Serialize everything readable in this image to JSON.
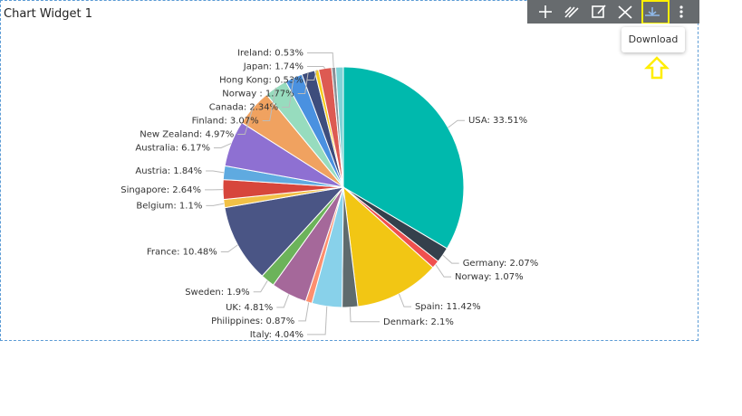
{
  "widget": {
    "title": "Chart Widget 1",
    "tooltip": "Download"
  },
  "chart_data": {
    "type": "pie",
    "values": [
      33.51,
      2.07,
      1.07,
      11.42,
      2.1,
      4.04,
      0.87,
      4.81,
      1.9,
      10.48,
      1.1,
      2.64,
      1.84,
      6.17,
      4.97,
      3.07,
      2.34,
      1.77,
      0.53,
      1.74,
      0.53,
      1.03
    ],
    "value_labels": [
      "USA: 33.51%",
      "Germany: 2.07%",
      "Norway: 1.07%",
      "Spain: 11.42%",
      "Denmark: 2.1%",
      "Italy: 4.04%",
      "Philippines: 0.87%",
      "UK: 4.81%",
      "Sweden: 1.9%",
      "France: 10.48%",
      "Belgium: 1.1%",
      "Singapore: 2.64%",
      "Austria: 1.84%",
      "Australia: 6.17%",
      "New Zealand: 4.97%",
      "Finland: 3.07%",
      "Canada: 2.34%",
      "Norway : 1.77%",
      "Hong Kong: 0.53%",
      "Japan: 1.74%",
      "Ireland: 0.53%",
      null
    ],
    "colors": [
      "#00b9ad",
      "#34404c",
      "#f0504e",
      "#f2c614",
      "#5f6b6d",
      "#88d1ea",
      "#fd8f6f",
      "#a5689a",
      "#6cb35a",
      "#4a5585",
      "#f1c046",
      "#d7463c",
      "#5faae0",
      "#8e70d2",
      "#f0a260",
      "#97dcbe",
      "#4a91e0",
      "#3e4d7c",
      "#f5cc1e",
      "#dd5a52",
      "#8b8f95",
      "#7fd3d6"
    ]
  }
}
